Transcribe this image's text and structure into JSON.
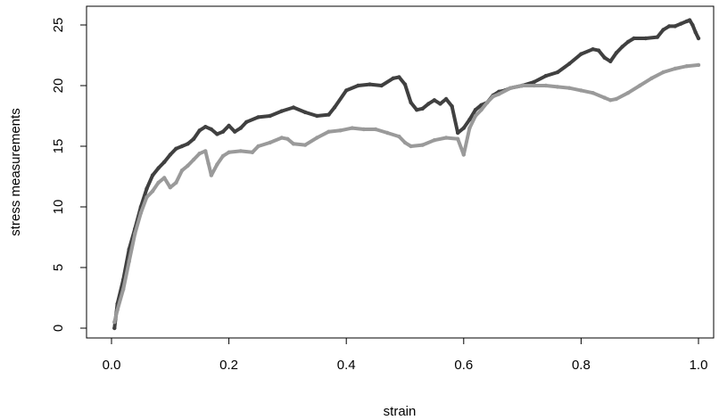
{
  "chart_data": {
    "type": "scatter",
    "title": "",
    "xlabel": "strain",
    "ylabel": "stress measurements",
    "xlim": [
      0,
      1.0
    ],
    "ylim": [
      0,
      25.5
    ],
    "xticks": [
      "0.0",
      "0.2",
      "0.4",
      "0.6",
      "0.8",
      "1.0"
    ],
    "yticks": [
      "0",
      "5",
      "10",
      "15",
      "20",
      "25"
    ],
    "grid": false,
    "legend": "none",
    "series": [
      {
        "color": "#404040",
        "points": [
          [
            0.005,
            0.0
          ],
          [
            0.01,
            2.0
          ],
          [
            0.02,
            4.0
          ],
          [
            0.03,
            6.5
          ],
          [
            0.04,
            8.2
          ],
          [
            0.05,
            10.0
          ],
          [
            0.06,
            11.5
          ],
          [
            0.07,
            12.6
          ],
          [
            0.08,
            13.2
          ],
          [
            0.09,
            13.7
          ],
          [
            0.1,
            14.3
          ],
          [
            0.11,
            14.8
          ],
          [
            0.12,
            15.0
          ],
          [
            0.13,
            15.2
          ],
          [
            0.14,
            15.6
          ],
          [
            0.15,
            16.3
          ],
          [
            0.16,
            16.6
          ],
          [
            0.17,
            16.4
          ],
          [
            0.18,
            16.0
          ],
          [
            0.19,
            16.2
          ],
          [
            0.2,
            16.7
          ],
          [
            0.21,
            16.2
          ],
          [
            0.22,
            16.5
          ],
          [
            0.23,
            17.0
          ],
          [
            0.25,
            17.4
          ],
          [
            0.27,
            17.5
          ],
          [
            0.29,
            17.9
          ],
          [
            0.31,
            18.2
          ],
          [
            0.33,
            17.8
          ],
          [
            0.35,
            17.5
          ],
          [
            0.37,
            17.6
          ],
          [
            0.38,
            18.2
          ],
          [
            0.4,
            19.6
          ],
          [
            0.42,
            20.0
          ],
          [
            0.44,
            20.1
          ],
          [
            0.46,
            20.0
          ],
          [
            0.48,
            20.6
          ],
          [
            0.49,
            20.7
          ],
          [
            0.5,
            20.1
          ],
          [
            0.51,
            18.6
          ],
          [
            0.52,
            18.0
          ],
          [
            0.53,
            18.1
          ],
          [
            0.54,
            18.5
          ],
          [
            0.55,
            18.8
          ],
          [
            0.56,
            18.5
          ],
          [
            0.57,
            18.9
          ],
          [
            0.58,
            18.3
          ],
          [
            0.59,
            16.1
          ],
          [
            0.6,
            16.5
          ],
          [
            0.61,
            17.2
          ],
          [
            0.62,
            18.0
          ],
          [
            0.63,
            18.4
          ],
          [
            0.64,
            18.6
          ],
          [
            0.65,
            19.2
          ],
          [
            0.66,
            19.5
          ],
          [
            0.67,
            19.6
          ],
          [
            0.68,
            19.8
          ],
          [
            0.7,
            20.0
          ],
          [
            0.72,
            20.3
          ],
          [
            0.74,
            20.8
          ],
          [
            0.76,
            21.1
          ],
          [
            0.78,
            21.8
          ],
          [
            0.8,
            22.6
          ],
          [
            0.82,
            23.0
          ],
          [
            0.83,
            22.9
          ],
          [
            0.84,
            22.3
          ],
          [
            0.85,
            22.0
          ],
          [
            0.86,
            22.7
          ],
          [
            0.87,
            23.2
          ],
          [
            0.88,
            23.6
          ],
          [
            0.89,
            23.9
          ],
          [
            0.91,
            23.9
          ],
          [
            0.93,
            24.0
          ],
          [
            0.94,
            24.6
          ],
          [
            0.95,
            24.9
          ],
          [
            0.96,
            24.9
          ],
          [
            0.97,
            25.1
          ],
          [
            0.98,
            25.3
          ],
          [
            0.985,
            25.4
          ],
          [
            0.99,
            25.0
          ],
          [
            0.995,
            24.4
          ],
          [
            1.0,
            23.9
          ]
        ]
      },
      {
        "color": "#9a9a9a",
        "points": [
          [
            0.005,
            0.5
          ],
          [
            0.01,
            1.5
          ],
          [
            0.02,
            3.2
          ],
          [
            0.03,
            5.5
          ],
          [
            0.04,
            7.8
          ],
          [
            0.05,
            9.5
          ],
          [
            0.06,
            10.8
          ],
          [
            0.07,
            11.3
          ],
          [
            0.08,
            12.0
          ],
          [
            0.09,
            12.4
          ],
          [
            0.1,
            11.6
          ],
          [
            0.11,
            12.0
          ],
          [
            0.12,
            13.0
          ],
          [
            0.13,
            13.4
          ],
          [
            0.14,
            13.9
          ],
          [
            0.15,
            14.4
          ],
          [
            0.16,
            14.6
          ],
          [
            0.165,
            13.6
          ],
          [
            0.17,
            12.6
          ],
          [
            0.18,
            13.5
          ],
          [
            0.19,
            14.2
          ],
          [
            0.2,
            14.5
          ],
          [
            0.22,
            14.6
          ],
          [
            0.24,
            14.5
          ],
          [
            0.25,
            15.0
          ],
          [
            0.27,
            15.3
          ],
          [
            0.29,
            15.7
          ],
          [
            0.3,
            15.6
          ],
          [
            0.31,
            15.2
          ],
          [
            0.33,
            15.1
          ],
          [
            0.35,
            15.7
          ],
          [
            0.37,
            16.2
          ],
          [
            0.39,
            16.3
          ],
          [
            0.41,
            16.5
          ],
          [
            0.43,
            16.4
          ],
          [
            0.45,
            16.4
          ],
          [
            0.47,
            16.1
          ],
          [
            0.49,
            15.8
          ],
          [
            0.5,
            15.3
          ],
          [
            0.51,
            15.0
          ],
          [
            0.53,
            15.1
          ],
          [
            0.55,
            15.5
          ],
          [
            0.57,
            15.7
          ],
          [
            0.59,
            15.6
          ],
          [
            0.6,
            14.3
          ],
          [
            0.61,
            16.5
          ],
          [
            0.62,
            17.5
          ],
          [
            0.63,
            18.0
          ],
          [
            0.64,
            18.6
          ],
          [
            0.65,
            19.1
          ],
          [
            0.66,
            19.3
          ],
          [
            0.68,
            19.8
          ],
          [
            0.7,
            20.0
          ],
          [
            0.72,
            20.0
          ],
          [
            0.74,
            20.0
          ],
          [
            0.76,
            19.9
          ],
          [
            0.78,
            19.8
          ],
          [
            0.8,
            19.6
          ],
          [
            0.82,
            19.4
          ],
          [
            0.84,
            19.0
          ],
          [
            0.85,
            18.8
          ],
          [
            0.86,
            18.9
          ],
          [
            0.88,
            19.4
          ],
          [
            0.9,
            20.0
          ],
          [
            0.92,
            20.6
          ],
          [
            0.94,
            21.1
          ],
          [
            0.96,
            21.4
          ],
          [
            0.98,
            21.6
          ],
          [
            1.0,
            21.7
          ]
        ]
      }
    ]
  }
}
